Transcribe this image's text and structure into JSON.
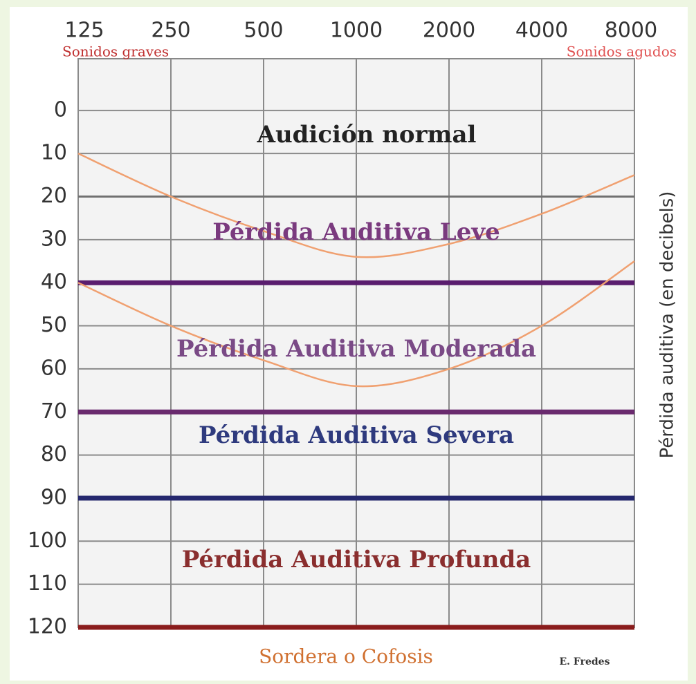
{
  "chart_data": {
    "type": "line",
    "title": "Audición normal",
    "x": [
      125,
      250,
      500,
      1000,
      2000,
      4000,
      8000
    ],
    "xlim": [
      125,
      8000
    ],
    "xticks": [
      125,
      250,
      500,
      1000,
      2000,
      4000,
      8000
    ],
    "xscale": "log",
    "ylim": [
      -12,
      120
    ],
    "yticks": [
      0,
      10,
      20,
      30,
      40,
      50,
      60,
      70,
      80,
      90,
      100,
      110,
      120
    ],
    "yinverted": true,
    "grid": true,
    "y_axis_label": "Pérdida auditiva (en decibels)",
    "x_left_label": "Sonidos graves",
    "x_right_label": "Sonidos agudos",
    "bottom_label": "Sordera o Cofosis",
    "credit": "E. Fredes",
    "series": [
      {
        "color": "#f0a070",
        "values": [
          10,
          20,
          28,
          34,
          31,
          24,
          15
        ]
      },
      {
        "color": "#f0a070",
        "values": [
          40,
          50,
          58,
          64,
          60,
          50,
          35
        ]
      }
    ],
    "thresholds": [
      {
        "value": 20,
        "color": "#707070"
      },
      {
        "value": 40,
        "color": "#5a1d6e"
      },
      {
        "value": 70,
        "color": "#6a2a6e"
      },
      {
        "value": 90,
        "color": "#25286e"
      },
      {
        "value": 120,
        "color": "#8a1c1c"
      }
    ],
    "annotations": [
      {
        "text": "Pérdida Auditiva Leve",
        "color": "#7a3a7e"
      },
      {
        "text": "Pérdida Auditiva Moderada",
        "color": "#7a4a86"
      },
      {
        "text": "Pérdida Auditiva Severa",
        "color": "#2e3a7e"
      },
      {
        "text": "Pérdida Auditiva Profunda",
        "color": "#8a2e2e"
      }
    ]
  }
}
